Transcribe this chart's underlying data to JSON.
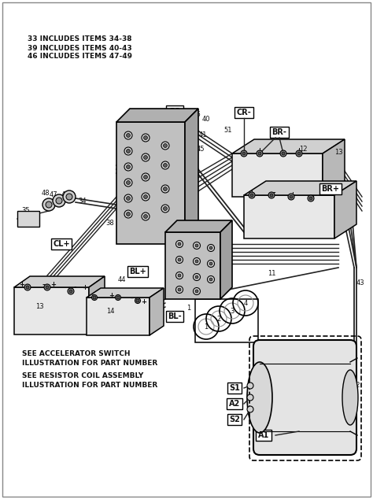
{
  "bg_color": "#ffffff",
  "fig_width": 4.74,
  "fig_height": 6.34,
  "dpi": 100,
  "bc": "#000000",
  "lc": "#222222",
  "gray1": "#c8c8c8",
  "gray2": "#b0b0b0",
  "gray3": "#e0e0e0",
  "gray_dark": "#909090",
  "tc": "#111111",
  "header_notes": [
    "33 INCLUDES ITEMS 34-38",
    "39 INCLUDES ITEMS 40-43",
    "46 INCLUDES ITEMS 47-49"
  ],
  "footer_line1": "SEE ACCELERATOR SWITCH",
  "footer_line2": "ILLUSTRATION FOR PART NUMBER",
  "footer_line3": "SEE RESISTOR COIL ASSEMBLY",
  "footer_line4": "ILLUSTRATION FOR PART NUMBER"
}
